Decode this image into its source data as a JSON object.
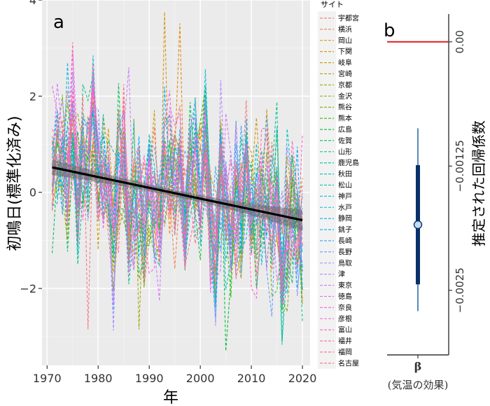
{
  "chart_data": [
    {
      "panel": "a",
      "type": "line",
      "xlabel": "年",
      "ylabel": "初鳴日(標準化済み)",
      "xlim": [
        1969,
        2021.5
      ],
      "ylim": [
        -3.6,
        4.0
      ],
      "x_ticks": [
        1970,
        1980,
        1990,
        2000,
        2010,
        2020
      ],
      "y_ticks": [
        -2,
        0,
        2,
        4
      ],
      "legend_title": "サイト",
      "legend_entries": [
        "宇都宮",
        "横浜",
        "岡山",
        "下関",
        "岐阜",
        "宮崎",
        "京都",
        "金沢",
        "熊谷",
        "熊本",
        "広島",
        "佐賀",
        "山形",
        "鹿児島",
        "秋田",
        "松山",
        "神戸",
        "水戸",
        "静岡",
        "銚子",
        "長崎",
        "長野",
        "鳥取",
        "津",
        "東京",
        "徳島",
        "奈良",
        "彦根",
        "富山",
        "福井",
        "福岡",
        "名古屋"
      ],
      "legend_colors": [
        "#F8766D",
        "#F07E4C",
        "#E58700",
        "#D59000",
        "#C99800",
        "#B7A000",
        "#A3A500",
        "#88AB00",
        "#6BB100",
        "#39B600",
        "#00BA38",
        "#00BD5C",
        "#00BF7D",
        "#00C097",
        "#00C0AF",
        "#00BFC4",
        "#00BCD8",
        "#00B6EB",
        "#00B0F6",
        "#00A9FF",
        "#35A2FF",
        "#619CFF",
        "#9590FF",
        "#B983FF",
        "#D277FF",
        "#E76BF3",
        "#F663E8",
        "#FF61CC",
        "#FF62BC",
        "#FF66A8",
        "#FF6C91",
        "#FA727C"
      ],
      "trend": {
        "x": [
          1971,
          2020
        ],
        "y": [
          0.52,
          -0.58
        ],
        "ci_halfwidth_start": 0.16,
        "ci_halfwidth_mid": 0.07,
        "ci_halfwidth_end": 0.22
      },
      "series_model": {
        "years_start": 1971,
        "years_end": 2020,
        "seed": 20240,
        "noise_sd": 0.95
      },
      "notable_points": [
        {
          "year": 1993,
          "value": 3.75
        },
        {
          "year": 2005,
          "value": -3.3
        },
        {
          "year": 1974,
          "value": 2.7
        },
        {
          "year": 1986,
          "value": 2.6
        },
        {
          "year": 1978,
          "value": -2.85
        },
        {
          "year": 1988,
          "value": -2.85
        },
        {
          "year": 2020,
          "value": -2.7
        }
      ]
    },
    {
      "panel": "b",
      "type": "scatter",
      "ylabel": "推定された回帰係数",
      "x_category": "β",
      "x_category_sub": "(気温の効果)",
      "ylim": [
        -0.00315,
        0.00028
      ],
      "y_ticks": [
        0.0,
        -0.00125,
        -0.0025
      ],
      "y_tick_labels": [
        "0.00",
        "−0.00125",
        "−0.0025"
      ],
      "reference_line": 0.0,
      "estimate": -0.00184,
      "inner_interval": [
        -0.00244,
        -0.00124
      ],
      "outer_interval": [
        -0.00271,
        -0.00087
      ],
      "colors": {
        "reference": "#E41A1C",
        "interval": "#08306B",
        "outer": "#2F6FA7",
        "point_fill": "#C6DBEF"
      }
    }
  ],
  "panel_labels": {
    "a": "a",
    "b": "b"
  }
}
